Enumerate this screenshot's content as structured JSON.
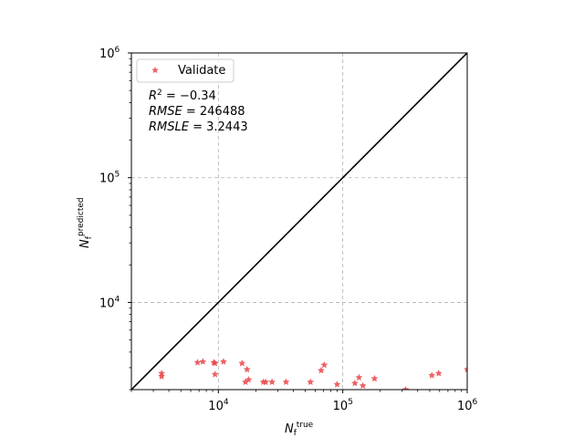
{
  "chart_data": {
    "type": "scatter",
    "xscale": "log",
    "yscale": "log",
    "xlim": [
      2000,
      1000000
    ],
    "ylim": [
      2000,
      1000000
    ],
    "grid": true,
    "legend_position": "top-left",
    "xlabel": {
      "base": "N",
      "sub": "f",
      "sup": "true"
    },
    "ylabel": {
      "base": "N",
      "sub": "f",
      "sup": "predicted"
    },
    "x_ticks": [
      {
        "value": 10000,
        "base": "10",
        "exp": "4"
      },
      {
        "value": 100000,
        "base": "10",
        "exp": "5"
      },
      {
        "value": 1000000,
        "base": "10",
        "exp": "6"
      }
    ],
    "y_ticks": [
      {
        "value": 10000,
        "base": "10",
        "exp": "4"
      },
      {
        "value": 100000,
        "base": "10",
        "exp": "5"
      },
      {
        "value": 1000000,
        "base": "10",
        "exp": "6"
      }
    ],
    "reference_line": {
      "x": [
        2000,
        1000000
      ],
      "y": [
        2000,
        1000000
      ],
      "color": "#000000"
    },
    "series": [
      {
        "name": "Validate",
        "color": "#e8474a",
        "marker": "star",
        "points": [
          [
            3500,
            2700
          ],
          [
            3500,
            2550
          ],
          [
            6800,
            3300
          ],
          [
            7500,
            3350
          ],
          [
            9200,
            3300
          ],
          [
            9400,
            3250
          ],
          [
            9400,
            2650
          ],
          [
            11000,
            3350
          ],
          [
            15500,
            3250
          ],
          [
            16500,
            2300
          ],
          [
            17000,
            2900
          ],
          [
            17500,
            2400
          ],
          [
            23000,
            2300
          ],
          [
            24000,
            2300
          ],
          [
            27000,
            2300
          ],
          [
            35000,
            2300
          ],
          [
            55000,
            2300
          ],
          [
            67000,
            2850
          ],
          [
            71000,
            3150
          ],
          [
            90000,
            2200
          ],
          [
            125000,
            2250
          ],
          [
            135000,
            2500
          ],
          [
            145000,
            2150
          ],
          [
            180000,
            2450
          ],
          [
            320000,
            2000
          ],
          [
            520000,
            2600
          ],
          [
            590000,
            2700
          ],
          [
            1000000,
            2900
          ]
        ]
      }
    ],
    "annotations": [
      {
        "lhs": "R",
        "sup": "2",
        "rhs": " = −0.34"
      },
      {
        "lhs": "RMSE",
        "sup": "",
        "rhs": " = 246488"
      },
      {
        "lhs": "RMSLE",
        "sup": "",
        "rhs": " = 3.2443"
      }
    ]
  }
}
